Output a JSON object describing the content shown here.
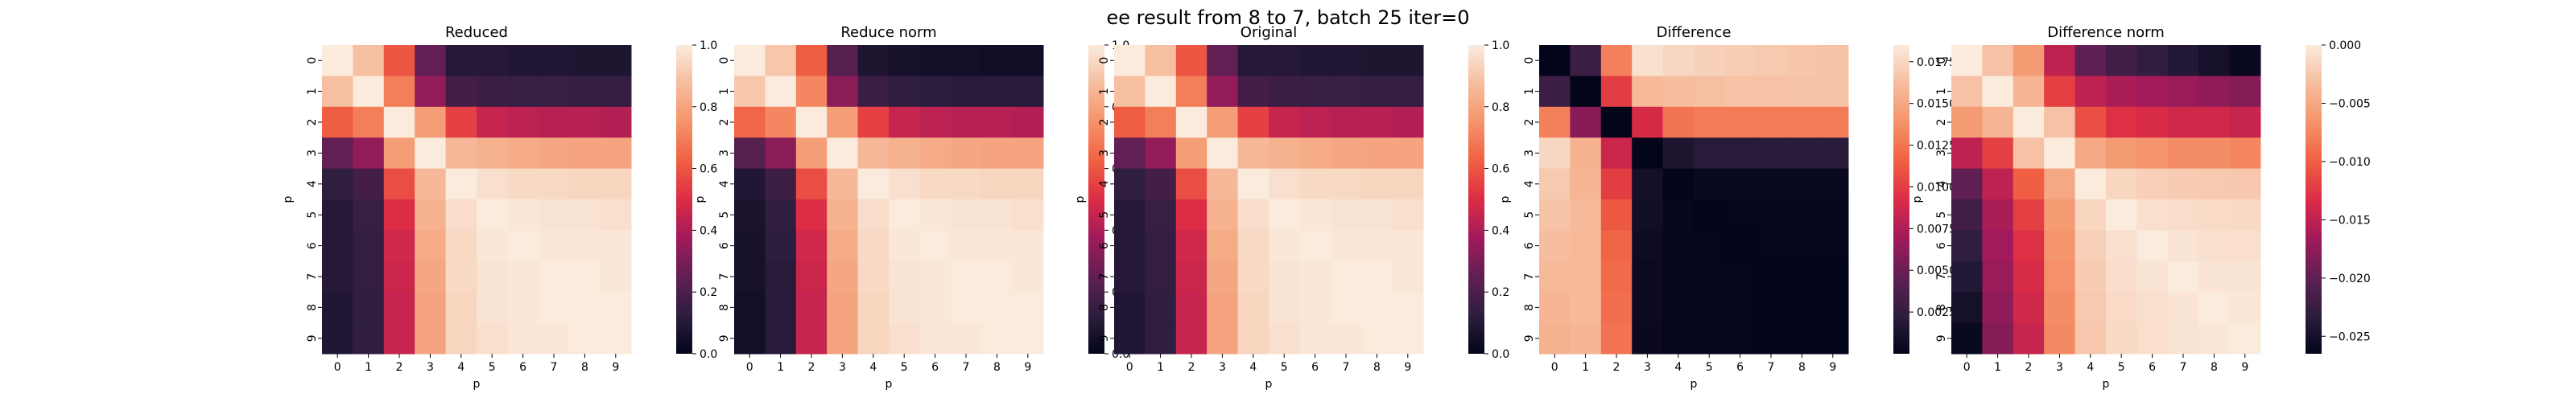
{
  "suptitle": "ee result from 8 to 7, batch 25 iter=0",
  "colormap": {
    "name": "rocket",
    "stops": [
      "#03051a",
      "#2d1e3e",
      "#611f53",
      "#a11a5b",
      "#dd2c45",
      "#f06043",
      "#f5936a",
      "#f6bd9e",
      "#faebdd"
    ]
  },
  "chart_data": [
    {
      "type": "heatmap",
      "title": "Reduced",
      "xlabel": "p",
      "ylabel": "p",
      "x_ticks": [
        "0",
        "1",
        "2",
        "3",
        "4",
        "5",
        "6",
        "7",
        "8",
        "9"
      ],
      "y_ticks": [
        "0",
        "1",
        "2",
        "3",
        "4",
        "5",
        "6",
        "7",
        "8",
        "9"
      ],
      "vmin": 0.0,
      "vmax": 1.0,
      "colorbar_ticks": [
        "0.0",
        "0.2",
        "0.4",
        "0.6",
        "0.8",
        "1.0"
      ],
      "colorbar_tick_values": [
        0.0,
        0.2,
        0.4,
        0.6,
        0.8,
        1.0
      ],
      "matrix": [
        [
          1.0,
          0.88,
          0.6,
          0.25,
          0.1,
          0.1,
          0.09,
          0.09,
          0.08,
          0.08
        ],
        [
          0.88,
          1.0,
          0.7,
          0.35,
          0.18,
          0.16,
          0.15,
          0.15,
          0.14,
          0.14
        ],
        [
          0.62,
          0.7,
          1.0,
          0.78,
          0.55,
          0.45,
          0.43,
          0.42,
          0.42,
          0.41
        ],
        [
          0.25,
          0.35,
          0.78,
          1.0,
          0.86,
          0.84,
          0.82,
          0.81,
          0.8,
          0.8
        ],
        [
          0.13,
          0.18,
          0.58,
          0.86,
          1.0,
          0.97,
          0.95,
          0.95,
          0.94,
          0.94
        ],
        [
          0.1,
          0.15,
          0.5,
          0.84,
          0.96,
          1.0,
          0.99,
          0.98,
          0.98,
          0.97
        ],
        [
          0.1,
          0.14,
          0.47,
          0.82,
          0.95,
          0.99,
          1.0,
          0.99,
          0.99,
          0.99
        ],
        [
          0.1,
          0.14,
          0.46,
          0.81,
          0.95,
          0.98,
          0.99,
          1.0,
          1.0,
          0.99
        ],
        [
          0.09,
          0.13,
          0.45,
          0.8,
          0.94,
          0.98,
          0.99,
          1.0,
          1.0,
          1.0
        ],
        [
          0.09,
          0.13,
          0.45,
          0.8,
          0.94,
          0.97,
          0.99,
          0.99,
          1.0,
          1.0
        ]
      ]
    },
    {
      "type": "heatmap",
      "title": "Reduce norm",
      "xlabel": "p",
      "ylabel": "p",
      "x_ticks": [
        "0",
        "1",
        "2",
        "3",
        "4",
        "5",
        "6",
        "7",
        "8",
        "9"
      ],
      "y_ticks": [
        "0",
        "1",
        "2",
        "3",
        "4",
        "5",
        "6",
        "7",
        "8",
        "9"
      ],
      "vmin": 0.0,
      "vmax": 1.0,
      "colorbar_ticks": [
        "0.0",
        "0.2",
        "0.4",
        "0.6",
        "0.8",
        "1.0"
      ],
      "colorbar_tick_values": [
        0.0,
        0.2,
        0.4,
        0.6,
        0.8,
        1.0
      ],
      "matrix": [
        [
          1.0,
          0.9,
          0.62,
          0.22,
          0.08,
          0.06,
          0.05,
          0.05,
          0.04,
          0.04
        ],
        [
          0.9,
          1.0,
          0.72,
          0.33,
          0.16,
          0.13,
          0.12,
          0.11,
          0.11,
          0.11
        ],
        [
          0.64,
          0.72,
          1.0,
          0.78,
          0.55,
          0.45,
          0.43,
          0.42,
          0.42,
          0.41
        ],
        [
          0.22,
          0.33,
          0.78,
          1.0,
          0.86,
          0.84,
          0.82,
          0.81,
          0.8,
          0.8
        ],
        [
          0.09,
          0.16,
          0.58,
          0.86,
          1.0,
          0.97,
          0.95,
          0.95,
          0.94,
          0.94
        ],
        [
          0.07,
          0.13,
          0.5,
          0.84,
          0.96,
          1.0,
          0.99,
          0.98,
          0.98,
          0.97
        ],
        [
          0.06,
          0.12,
          0.47,
          0.82,
          0.95,
          0.99,
          1.0,
          0.99,
          0.99,
          0.99
        ],
        [
          0.06,
          0.11,
          0.46,
          0.81,
          0.95,
          0.98,
          0.99,
          1.0,
          1.0,
          0.99
        ],
        [
          0.05,
          0.11,
          0.45,
          0.8,
          0.94,
          0.98,
          0.99,
          1.0,
          1.0,
          1.0
        ],
        [
          0.05,
          0.11,
          0.45,
          0.8,
          0.94,
          0.97,
          0.99,
          0.99,
          1.0,
          1.0
        ]
      ]
    },
    {
      "type": "heatmap",
      "title": "Original",
      "xlabel": "p",
      "ylabel": "p",
      "x_ticks": [
        "0",
        "1",
        "2",
        "3",
        "4",
        "5",
        "6",
        "7",
        "8",
        "9"
      ],
      "y_ticks": [
        "0",
        "1",
        "2",
        "3",
        "4",
        "5",
        "6",
        "7",
        "8",
        "9"
      ],
      "vmin": 0.0,
      "vmax": 1.0,
      "colorbar_ticks": [
        "0.0",
        "0.2",
        "0.4",
        "0.6",
        "0.8",
        "1.0"
      ],
      "colorbar_tick_values": [
        0.0,
        0.2,
        0.4,
        0.6,
        0.8,
        1.0
      ],
      "matrix": [
        [
          1.0,
          0.88,
          0.6,
          0.25,
          0.1,
          0.1,
          0.09,
          0.09,
          0.08,
          0.08
        ],
        [
          0.88,
          1.0,
          0.7,
          0.35,
          0.18,
          0.16,
          0.15,
          0.15,
          0.14,
          0.14
        ],
        [
          0.62,
          0.7,
          1.0,
          0.78,
          0.55,
          0.45,
          0.43,
          0.42,
          0.42,
          0.41
        ],
        [
          0.25,
          0.35,
          0.78,
          1.0,
          0.86,
          0.84,
          0.82,
          0.81,
          0.8,
          0.8
        ],
        [
          0.13,
          0.18,
          0.58,
          0.86,
          1.0,
          0.97,
          0.95,
          0.95,
          0.94,
          0.94
        ],
        [
          0.1,
          0.15,
          0.5,
          0.84,
          0.96,
          1.0,
          0.99,
          0.98,
          0.98,
          0.97
        ],
        [
          0.1,
          0.14,
          0.47,
          0.82,
          0.95,
          0.99,
          1.0,
          0.99,
          0.99,
          0.99
        ],
        [
          0.1,
          0.14,
          0.46,
          0.81,
          0.95,
          0.98,
          0.99,
          1.0,
          1.0,
          0.99
        ],
        [
          0.09,
          0.13,
          0.45,
          0.8,
          0.94,
          0.98,
          0.99,
          1.0,
          1.0,
          1.0
        ],
        [
          0.09,
          0.13,
          0.45,
          0.8,
          0.94,
          0.97,
          0.99,
          0.99,
          1.0,
          1.0
        ]
      ]
    },
    {
      "type": "heatmap",
      "title": "Difference",
      "xlabel": "p",
      "ylabel": "p",
      "x_ticks": [
        "0",
        "1",
        "2",
        "3",
        "4",
        "5",
        "6",
        "7",
        "8",
        "9"
      ],
      "y_ticks": [
        "0",
        "1",
        "2",
        "3",
        "4",
        "5",
        "6",
        "7",
        "8",
        "9"
      ],
      "vmin": 0.0,
      "vmax": 0.0185,
      "colorbar_ticks": [
        "0.0025",
        "0.0050",
        "0.0075",
        "0.0100",
        "0.0125",
        "0.0150",
        "0.0175"
      ],
      "colorbar_tick_values": [
        0.0025,
        0.005,
        0.0075,
        0.01,
        0.0125,
        0.015,
        0.0175
      ],
      "matrix": [
        [
          0.0,
          0.003,
          0.013,
          0.018,
          0.0175,
          0.0172,
          0.017,
          0.0168,
          0.0166,
          0.0165
        ],
        [
          0.003,
          0.0,
          0.01,
          0.016,
          0.0162,
          0.0163,
          0.0164,
          0.0164,
          0.0165,
          0.0165
        ],
        [
          0.013,
          0.006,
          0.0,
          0.009,
          0.0125,
          0.0128,
          0.0128,
          0.0128,
          0.0128,
          0.0128
        ],
        [
          0.0175,
          0.0155,
          0.0085,
          0.0,
          0.0015,
          0.002,
          0.002,
          0.0021,
          0.0021,
          0.0021
        ],
        [
          0.0168,
          0.0158,
          0.01,
          0.001,
          0.0,
          0.0003,
          0.0003,
          0.0003,
          0.0003,
          0.0003
        ],
        [
          0.0165,
          0.016,
          0.0112,
          0.0008,
          0.0002,
          0.0,
          0.0001,
          0.0001,
          0.0001,
          0.0001
        ],
        [
          0.0162,
          0.016,
          0.0118,
          0.0006,
          0.0001,
          0.0001,
          0.0,
          0.0001,
          0.0001,
          0.0001
        ],
        [
          0.016,
          0.016,
          0.012,
          0.0005,
          0.0001,
          0.0001,
          0.0001,
          0.0,
          0.0,
          0.0
        ],
        [
          0.0158,
          0.016,
          0.0122,
          0.0005,
          0.0001,
          0.0001,
          0.0001,
          0.0,
          0.0,
          0.0
        ],
        [
          0.0155,
          0.0158,
          0.0124,
          0.0004,
          0.0001,
          0.0001,
          0.0001,
          0.0,
          0.0,
          0.0
        ]
      ]
    },
    {
      "type": "heatmap",
      "title": "Difference norm",
      "xlabel": "p",
      "ylabel": "p",
      "x_ticks": [
        "0",
        "1",
        "2",
        "3",
        "4",
        "5",
        "6",
        "7",
        "8",
        "9"
      ],
      "y_ticks": [
        "0",
        "1",
        "2",
        "3",
        "4",
        "5",
        "6",
        "7",
        "8",
        "9"
      ],
      "vmin": -0.0265,
      "vmax": 0.0,
      "colorbar_ticks": [
        "−0.025",
        "−0.020",
        "−0.015",
        "−0.010",
        "−0.005",
        "0.000"
      ],
      "colorbar_tick_values": [
        -0.025,
        -0.02,
        -0.015,
        -0.01,
        -0.005,
        0.0
      ],
      "matrix": [
        [
          0.0,
          -0.003,
          -0.006,
          -0.015,
          -0.02,
          -0.022,
          -0.023,
          -0.024,
          -0.025,
          -0.026
        ],
        [
          -0.003,
          0.0,
          -0.004,
          -0.012,
          -0.015,
          -0.016,
          -0.0165,
          -0.017,
          -0.0175,
          -0.018
        ],
        [
          -0.006,
          -0.004,
          0.0,
          -0.003,
          -0.011,
          -0.013,
          -0.0135,
          -0.014,
          -0.014,
          -0.0145
        ],
        [
          -0.015,
          -0.012,
          -0.003,
          0.0,
          -0.005,
          -0.006,
          -0.0065,
          -0.007,
          -0.007,
          -0.0075
        ],
        [
          -0.02,
          -0.015,
          -0.01,
          -0.005,
          0.0,
          -0.0015,
          -0.002,
          -0.0022,
          -0.0024,
          -0.0025
        ],
        [
          -0.022,
          -0.016,
          -0.012,
          -0.006,
          -0.0015,
          0.0,
          -0.0008,
          -0.001,
          -0.0012,
          -0.0013
        ],
        [
          -0.023,
          -0.0165,
          -0.013,
          -0.0065,
          -0.002,
          -0.0008,
          0.0,
          -0.0006,
          -0.0008,
          -0.0009
        ],
        [
          -0.024,
          -0.017,
          -0.0135,
          -0.0068,
          -0.0022,
          -0.001,
          -0.0006,
          0.0,
          -0.0004,
          -0.0005
        ],
        [
          -0.025,
          -0.0175,
          -0.014,
          -0.007,
          -0.0024,
          -0.0012,
          -0.0008,
          -0.0004,
          0.0,
          -0.0003
        ],
        [
          -0.026,
          -0.018,
          -0.0145,
          -0.0072,
          -0.0025,
          -0.0013,
          -0.0009,
          -0.0005,
          -0.0003,
          0.0
        ]
      ]
    }
  ]
}
